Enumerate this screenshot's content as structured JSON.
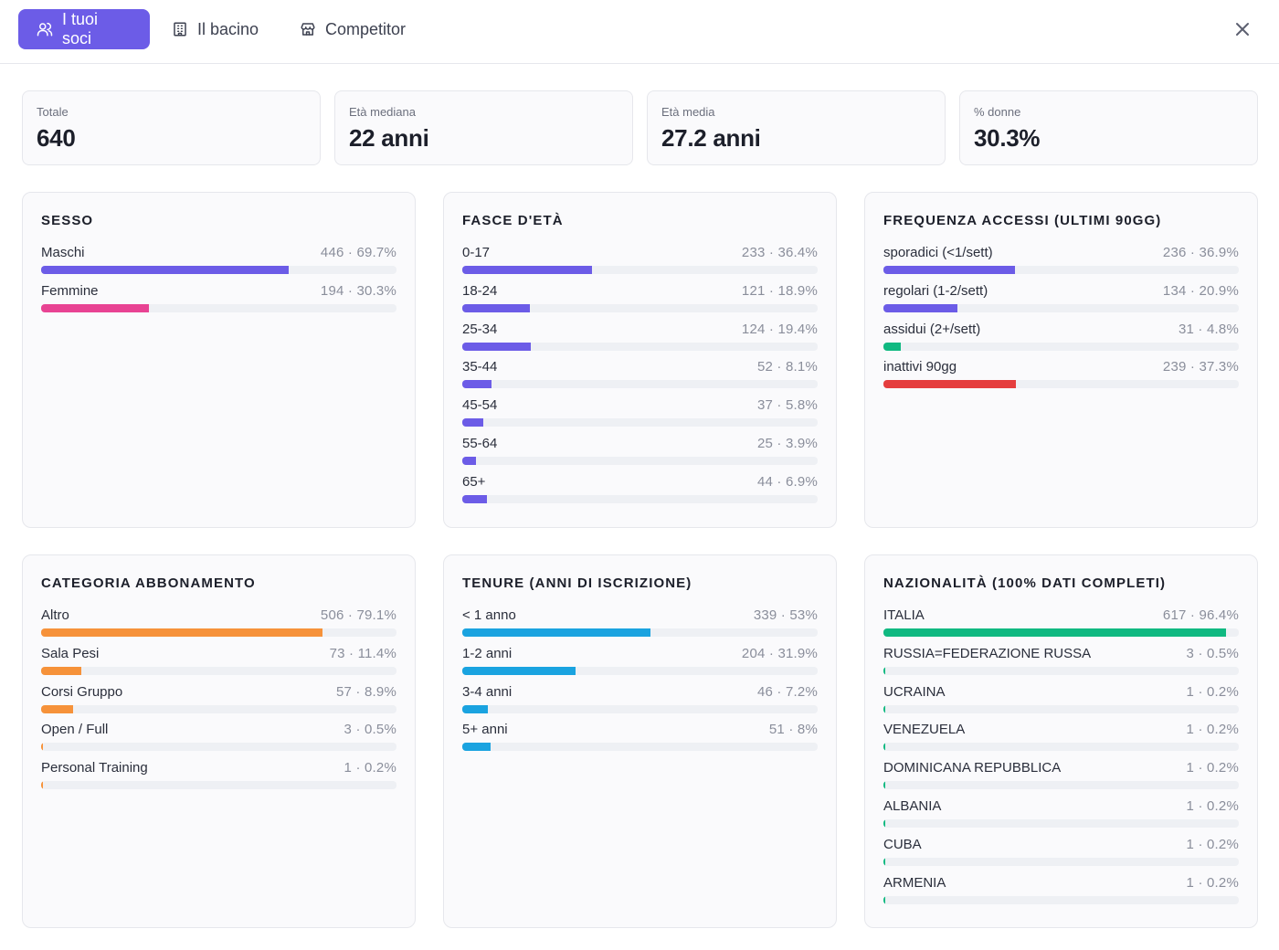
{
  "tabs": [
    {
      "label": "I tuoi soci",
      "icon": "users-icon",
      "active": true
    },
    {
      "label": "Il bacino",
      "icon": "building-icon",
      "active": false
    },
    {
      "label": "Competitor",
      "icon": "store-icon",
      "active": false
    }
  ],
  "stats": [
    {
      "label": "Totale",
      "value": "640"
    },
    {
      "label": "Età mediana",
      "value": "22 anni"
    },
    {
      "label": "Età media",
      "value": "27.2 anni"
    },
    {
      "label": "% donne",
      "value": "30.3%"
    }
  ],
  "colors": {
    "accent": "#6c5ce7",
    "pink": "#e84393",
    "green": "#10b981",
    "red": "#e53e3e",
    "orange": "#f6923a",
    "blue": "#1aa3e0"
  },
  "cards": [
    {
      "title": "SESSO",
      "rows": [
        {
          "label": "Maschi",
          "value": "446 · 69.7%",
          "pct": 69.7,
          "color": "#6c5ce7"
        },
        {
          "label": "Femmine",
          "value": "194 · 30.3%",
          "pct": 30.3,
          "color": "#e84393"
        }
      ]
    },
    {
      "title": "FASCE D'ETÀ",
      "rows": [
        {
          "label": "0-17",
          "value": "233 · 36.4%",
          "pct": 36.4,
          "color": "#6c5ce7"
        },
        {
          "label": "18-24",
          "value": "121 · 18.9%",
          "pct": 18.9,
          "color": "#6c5ce7"
        },
        {
          "label": "25-34",
          "value": "124 · 19.4%",
          "pct": 19.4,
          "color": "#6c5ce7"
        },
        {
          "label": "35-44",
          "value": "52 · 8.1%",
          "pct": 8.1,
          "color": "#6c5ce7"
        },
        {
          "label": "45-54",
          "value": "37 · 5.8%",
          "pct": 5.8,
          "color": "#6c5ce7"
        },
        {
          "label": "55-64",
          "value": "25 · 3.9%",
          "pct": 3.9,
          "color": "#6c5ce7"
        },
        {
          "label": "65+",
          "value": "44 · 6.9%",
          "pct": 6.9,
          "color": "#6c5ce7"
        }
      ]
    },
    {
      "title": "FREQUENZA ACCESSI (ULTIMI 90GG)",
      "rows": [
        {
          "label": "sporadici (<1/sett)",
          "value": "236 · 36.9%",
          "pct": 36.9,
          "color": "#6c5ce7"
        },
        {
          "label": "regolari (1-2/sett)",
          "value": "134 · 20.9%",
          "pct": 20.9,
          "color": "#6c5ce7"
        },
        {
          "label": "assidui (2+/sett)",
          "value": "31 · 4.8%",
          "pct": 4.8,
          "color": "#10b981"
        },
        {
          "label": "inattivi 90gg",
          "value": "239 · 37.3%",
          "pct": 37.3,
          "color": "#e53e3e"
        }
      ]
    },
    {
      "title": "CATEGORIA ABBONAMENTO",
      "rows": [
        {
          "label": "Altro",
          "value": "506 · 79.1%",
          "pct": 79.1,
          "color": "#f6923a"
        },
        {
          "label": "Sala Pesi",
          "value": "73 · 11.4%",
          "pct": 11.4,
          "color": "#f6923a"
        },
        {
          "label": "Corsi Gruppo",
          "value": "57 · 8.9%",
          "pct": 8.9,
          "color": "#f6923a"
        },
        {
          "label": "Open / Full",
          "value": "3 · 0.5%",
          "pct": 0.5,
          "color": "#f6923a"
        },
        {
          "label": "Personal Training",
          "value": "1 · 0.2%",
          "pct": 0.2,
          "color": "#f6923a"
        }
      ]
    },
    {
      "title": "TENURE (ANNI DI ISCRIZIONE)",
      "rows": [
        {
          "label": "< 1 anno",
          "value": "339 · 53%",
          "pct": 53,
          "color": "#1aa3e0"
        },
        {
          "label": "1-2 anni",
          "value": "204 · 31.9%",
          "pct": 31.9,
          "color": "#1aa3e0"
        },
        {
          "label": "3-4 anni",
          "value": "46 · 7.2%",
          "pct": 7.2,
          "color": "#1aa3e0"
        },
        {
          "label": "5+ anni",
          "value": "51 · 8%",
          "pct": 8,
          "color": "#1aa3e0"
        }
      ]
    },
    {
      "title": "NAZIONALITÀ (100% DATI COMPLETI)",
      "rows": [
        {
          "label": "ITALIA",
          "value": "617 · 96.4%",
          "pct": 96.4,
          "color": "#10b981"
        },
        {
          "label": "RUSSIA=FEDERAZIONE RUSSA",
          "value": "3 · 0.5%",
          "pct": 0.5,
          "color": "#10b981"
        },
        {
          "label": "UCRAINA",
          "value": "1 · 0.2%",
          "pct": 0.2,
          "color": "#10b981"
        },
        {
          "label": "VENEZUELA",
          "value": "1 · 0.2%",
          "pct": 0.2,
          "color": "#10b981"
        },
        {
          "label": "DOMINICANA REPUBBLICA",
          "value": "1 · 0.2%",
          "pct": 0.2,
          "color": "#10b981"
        },
        {
          "label": "ALBANIA",
          "value": "1 · 0.2%",
          "pct": 0.2,
          "color": "#10b981"
        },
        {
          "label": "CUBA",
          "value": "1 · 0.2%",
          "pct": 0.2,
          "color": "#10b981"
        },
        {
          "label": "ARMENIA",
          "value": "1 · 0.2%",
          "pct": 0.2,
          "color": "#10b981"
        }
      ]
    }
  ]
}
